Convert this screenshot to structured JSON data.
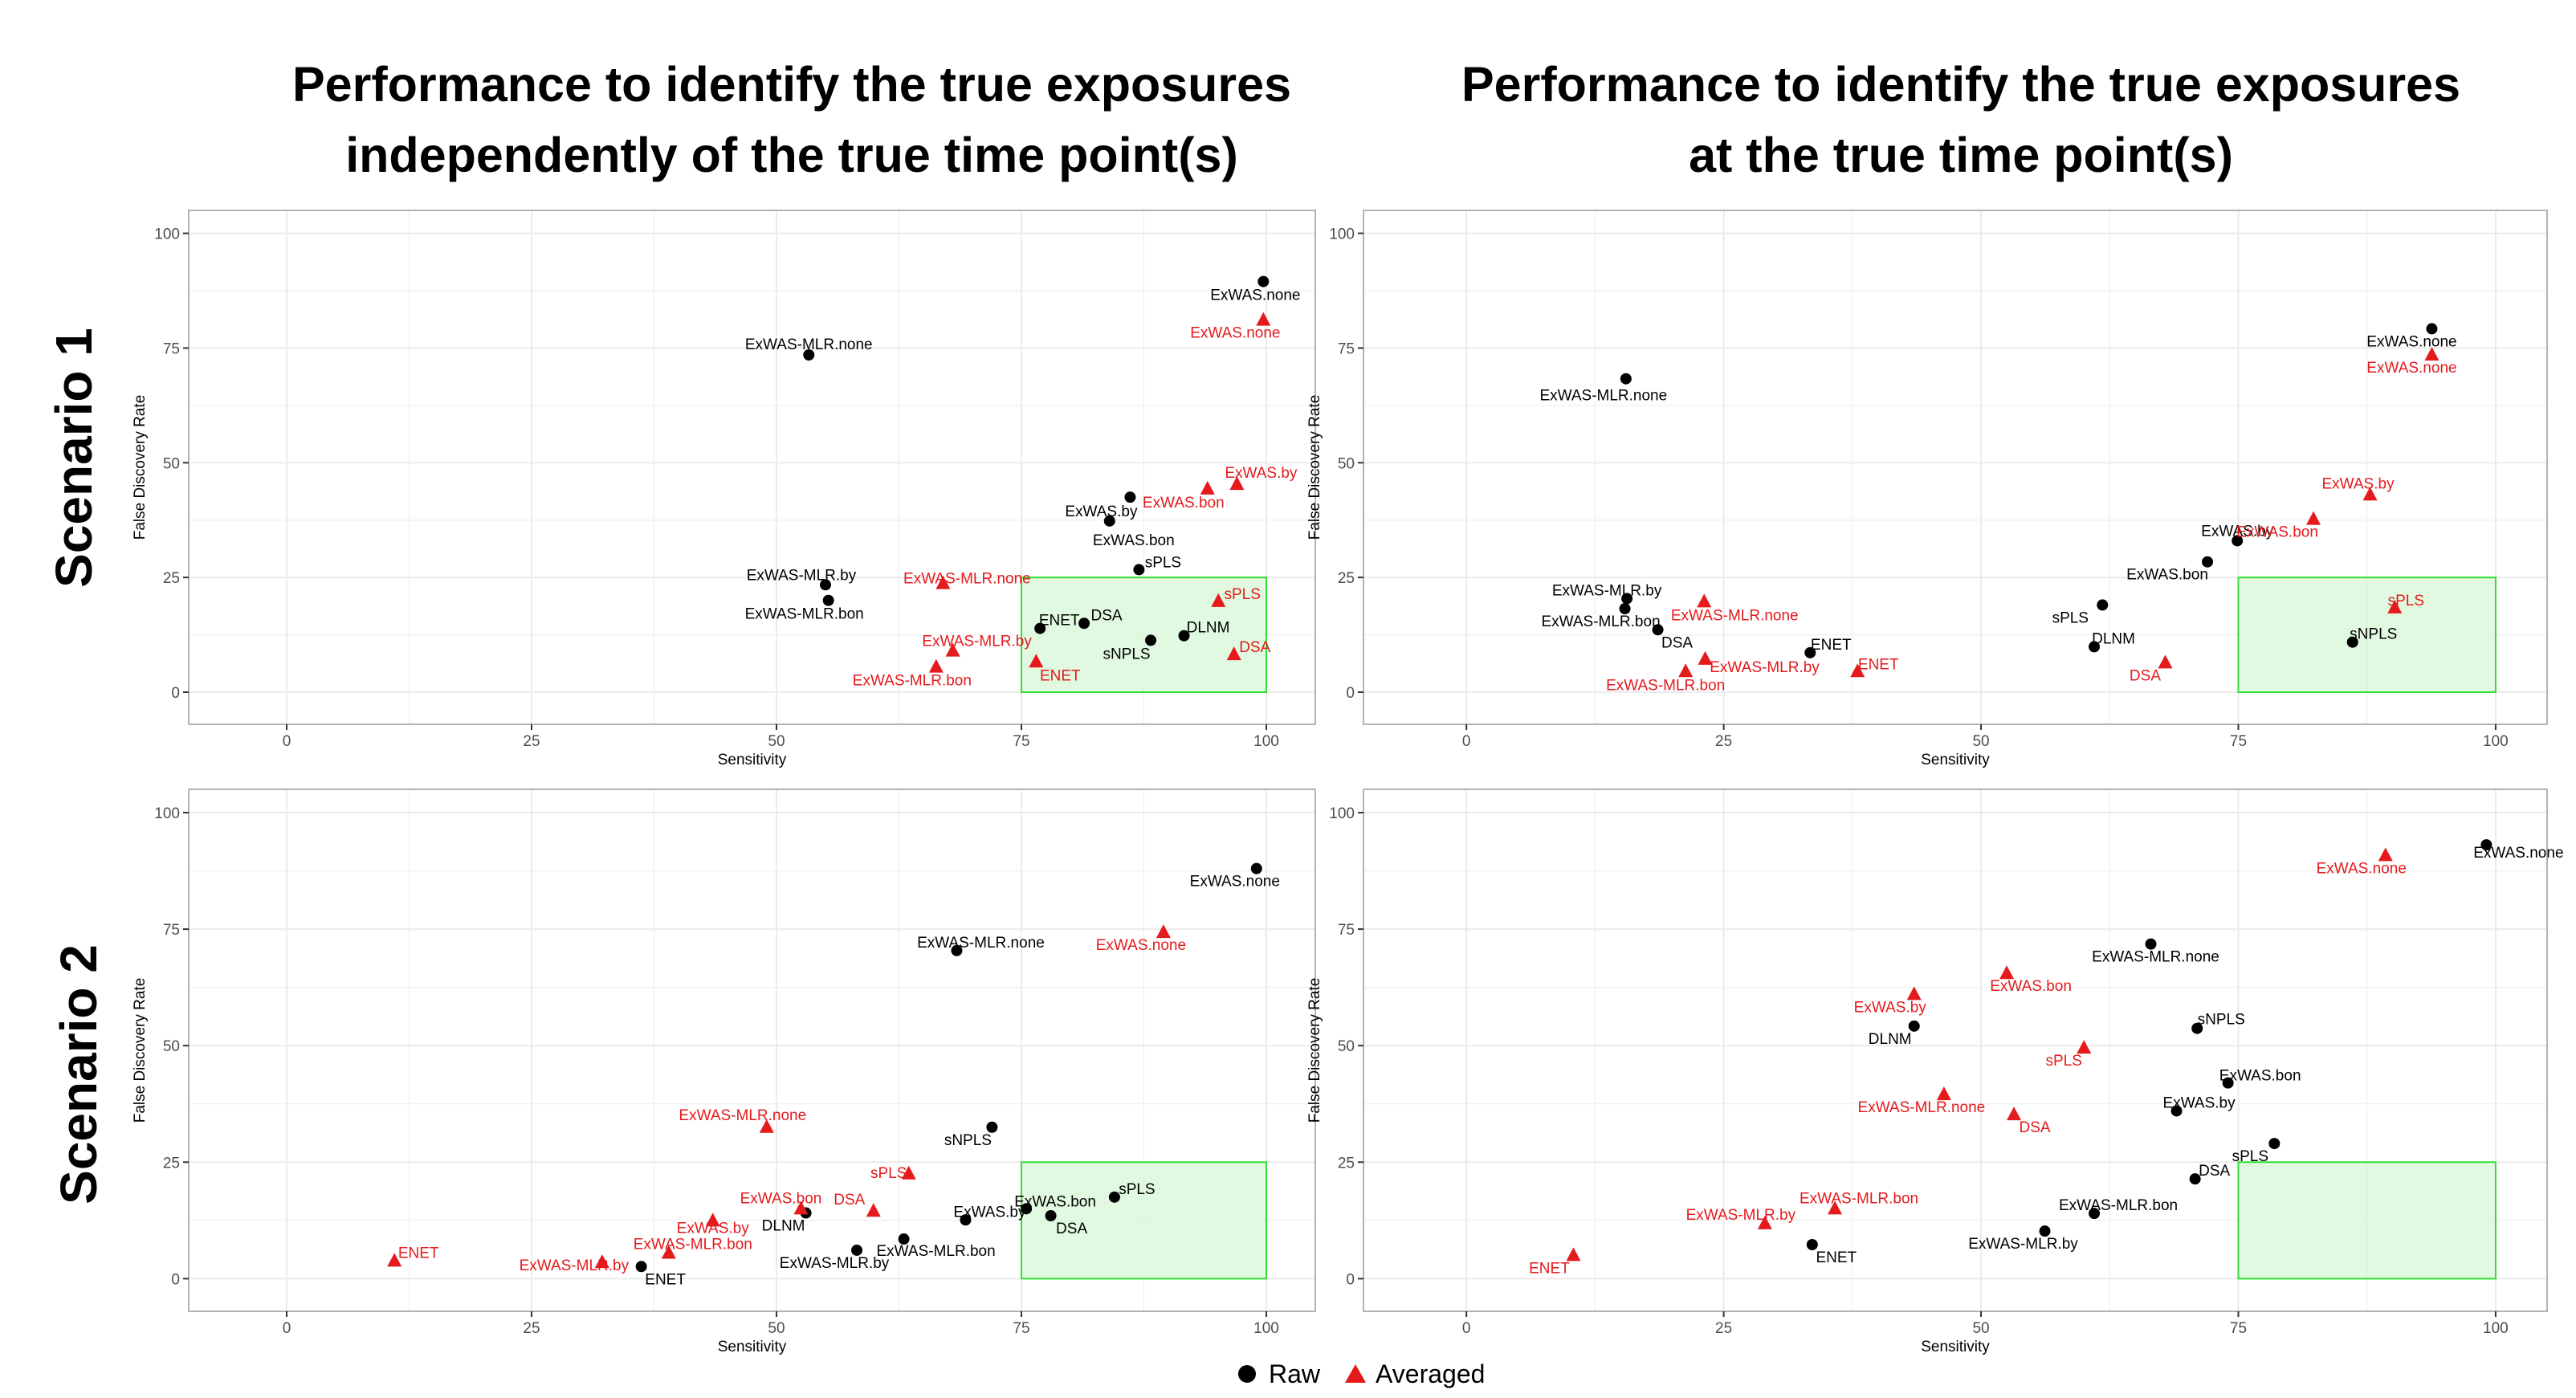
{
  "figure": {
    "column_titles": [
      [
        "Performance to identify the true exposures",
        "independently of the true time point(s)"
      ],
      [
        "Performance to identify the true exposures",
        "at the true time point(s)"
      ]
    ],
    "row_titles": [
      "Scenario 1",
      "Scenario 2"
    ],
    "legend": {
      "raw": "Raw",
      "averaged": "Averaged"
    },
    "colors": {
      "raw": "#000000",
      "averaged": "#e41a1c",
      "target_fill": "#ccf5cc",
      "target_stroke": "#33dd33",
      "panel_border": "#b3b3b3",
      "grid": "#ebebeb"
    }
  },
  "chart_data": [
    {
      "type": "scatter",
      "title": "Scenario 1 — independently of the true time point(s)",
      "xlabel": "Sensitivity",
      "ylabel": "False Discovery Rate",
      "xlim": [
        -10,
        105
      ],
      "ylim": [
        -7,
        105
      ],
      "xticks": [
        0,
        25,
        50,
        75,
        100
      ],
      "yticks": [
        0,
        25,
        50,
        75,
        100
      ],
      "target_region": {
        "x": [
          75,
          100
        ],
        "y": [
          0,
          25
        ]
      },
      "series": [
        {
          "name": "Raw",
          "points": [
            {
              "label": "ExWAS.none",
              "x": 99.7,
              "y": 89.5
            },
            {
              "label": "ExWAS-MLR.none",
              "x": 53.3,
              "y": 73.5
            },
            {
              "label": "ExWAS.by",
              "x": 86.1,
              "y": 42.5
            },
            {
              "label": "ExWAS.bon",
              "x": 84.0,
              "y": 37.3
            },
            {
              "label": "sPLS",
              "x": 87.0,
              "y": 26.7
            },
            {
              "label": "ExWAS-MLR.by",
              "x": 55.0,
              "y": 23.4
            },
            {
              "label": "ExWAS-MLR.bon",
              "x": 55.3,
              "y": 20.0
            },
            {
              "label": "ENET",
              "x": 76.9,
              "y": 13.9
            },
            {
              "label": "DSA",
              "x": 81.4,
              "y": 15.0
            },
            {
              "label": "DLNM",
              "x": 91.6,
              "y": 12.3
            },
            {
              "label": "sNPLS",
              "x": 88.2,
              "y": 11.3
            }
          ]
        },
        {
          "name": "Averaged",
          "points": [
            {
              "label": "ExWAS.none",
              "x": 99.7,
              "y": 81.1
            },
            {
              "label": "ExWAS.by",
              "x": 97.0,
              "y": 45.3
            },
            {
              "label": "ExWAS.bon",
              "x": 94.0,
              "y": 44.3
            },
            {
              "label": "ExWAS-MLR.none",
              "x": 67.0,
              "y": 23.7
            },
            {
              "label": "sPLS",
              "x": 95.1,
              "y": 19.8
            },
            {
              "label": "ExWAS-MLR.by",
              "x": 68.0,
              "y": 9.0
            },
            {
              "label": "ExWAS-MLR.bon",
              "x": 66.3,
              "y": 5.5
            },
            {
              "label": "ENET",
              "x": 76.5,
              "y": 6.6
            },
            {
              "label": "DSA",
              "x": 96.7,
              "y": 8.2
            }
          ]
        }
      ]
    },
    {
      "type": "scatter",
      "title": "Scenario 1 — at the true time point(s)",
      "xlabel": "Sensitivity",
      "ylabel": "False Discovery Rate",
      "xlim": [
        -10,
        105
      ],
      "ylim": [
        -7,
        105
      ],
      "xticks": [
        0,
        25,
        50,
        75,
        100
      ],
      "yticks": [
        0,
        25,
        50,
        75,
        100
      ],
      "target_region": {
        "x": [
          75,
          100
        ],
        "y": [
          0,
          25
        ]
      },
      "series": [
        {
          "name": "Raw",
          "points": [
            {
              "label": "ExWAS.none",
              "x": 93.8,
              "y": 79.2
            },
            {
              "label": "ExWAS-MLR.none",
              "x": 15.5,
              "y": 68.3
            },
            {
              "label": "ExWAS.by",
              "x": 74.9,
              "y": 33.0
            },
            {
              "label": "ExWAS.bon",
              "x": 72.0,
              "y": 28.4
            },
            {
              "label": "ExWAS-MLR.by",
              "x": 15.6,
              "y": 20.4
            },
            {
              "label": "ExWAS-MLR.bon",
              "x": 15.4,
              "y": 18.2
            },
            {
              "label": "DSA",
              "x": 18.6,
              "y": 13.6
            },
            {
              "label": "ENET",
              "x": 33.4,
              "y": 8.6
            },
            {
              "label": "sPLS",
              "x": 61.8,
              "y": 19.0
            },
            {
              "label": "DLNM",
              "x": 61.0,
              "y": 9.9
            },
            {
              "label": "sNPLS",
              "x": 86.1,
              "y": 10.9
            }
          ]
        },
        {
          "name": "Averaged",
          "points": [
            {
              "label": "ExWAS.none",
              "x": 93.8,
              "y": 73.5
            },
            {
              "label": "ExWAS.by",
              "x": 87.8,
              "y": 43.0
            },
            {
              "label": "ExWAS.bon",
              "x": 82.3,
              "y": 37.7
            },
            {
              "label": "sPLS",
              "x": 90.2,
              "y": 18.4
            },
            {
              "label": "ExWAS-MLR.none",
              "x": 23.1,
              "y": 19.7
            },
            {
              "label": "ExWAS-MLR.by",
              "x": 23.2,
              "y": 7.2
            },
            {
              "label": "ExWAS-MLR.bon",
              "x": 21.3,
              "y": 4.5
            },
            {
              "label": "ENET",
              "x": 38.0,
              "y": 4.5
            },
            {
              "label": "DSA",
              "x": 67.9,
              "y": 6.4
            }
          ]
        }
      ]
    },
    {
      "type": "scatter",
      "title": "Scenario 2 — independently of the true time point(s)",
      "xlabel": "Sensitivity",
      "ylabel": "False Discovery Rate",
      "xlim": [
        -10,
        105
      ],
      "ylim": [
        -7,
        105
      ],
      "xticks": [
        0,
        25,
        50,
        75,
        100
      ],
      "yticks": [
        0,
        25,
        50,
        75,
        100
      ],
      "target_region": {
        "x": [
          75,
          100
        ],
        "y": [
          0,
          25
        ]
      },
      "series": [
        {
          "name": "Raw",
          "points": [
            {
              "label": "ExWAS.none",
              "x": 99.0,
              "y": 88.0
            },
            {
              "label": "ExWAS-MLR.none",
              "x": 68.4,
              "y": 70.4
            },
            {
              "label": "sNPLS",
              "x": 72.0,
              "y": 32.5
            },
            {
              "label": "DLNM",
              "x": 53.0,
              "y": 14.1
            },
            {
              "label": "ExWAS-MLR.bon",
              "x": 63.0,
              "y": 8.5
            },
            {
              "label": "ExWAS-MLR.by",
              "x": 58.2,
              "y": 6.1
            },
            {
              "label": "ExWAS.by",
              "x": 69.3,
              "y": 12.6
            },
            {
              "label": "ExWAS.bon",
              "x": 75.5,
              "y": 15.0
            },
            {
              "label": "DSA",
              "x": 78.0,
              "y": 13.5
            },
            {
              "label": "sPLS",
              "x": 84.5,
              "y": 17.5
            },
            {
              "label": "ENET",
              "x": 36.2,
              "y": 2.6
            }
          ]
        },
        {
          "name": "Averaged",
          "points": [
            {
              "label": "ExWAS.none",
              "x": 89.5,
              "y": 74.3
            },
            {
              "label": "ExWAS-MLR.none",
              "x": 49.0,
              "y": 32.5
            },
            {
              "label": "ExWAS.bon",
              "x": 52.5,
              "y": 15.0
            },
            {
              "label": "DSA",
              "x": 59.9,
              "y": 14.5
            },
            {
              "label": "sPLS",
              "x": 63.5,
              "y": 22.5
            },
            {
              "label": "ExWAS.by",
              "x": 43.5,
              "y": 12.4
            },
            {
              "label": "ExWAS-MLR.bon",
              "x": 39.0,
              "y": 5.5
            },
            {
              "label": "ExWAS-MLR.by",
              "x": 32.2,
              "y": 3.5
            },
            {
              "label": "ENET",
              "x": 11.0,
              "y": 3.8
            }
          ]
        }
      ]
    },
    {
      "type": "scatter",
      "title": "Scenario 2 — at the true time point(s)",
      "xlabel": "Sensitivity",
      "ylabel": "False Discovery Rate",
      "xlim": [
        -10,
        105
      ],
      "ylim": [
        -7,
        105
      ],
      "xticks": [
        0,
        25,
        50,
        75,
        100
      ],
      "yticks": [
        0,
        25,
        50,
        75,
        100
      ],
      "target_region": {
        "x": [
          75,
          100
        ],
        "y": [
          0,
          25
        ]
      },
      "series": [
        {
          "name": "Raw",
          "points": [
            {
              "label": "ExWAS.none",
              "x": 99.1,
              "y": 93.1
            },
            {
              "label": "ExWAS-MLR.none",
              "x": 66.5,
              "y": 71.8
            },
            {
              "label": "sNPLS",
              "x": 71.0,
              "y": 53.7
            },
            {
              "label": "DLNM",
              "x": 43.5,
              "y": 54.2
            },
            {
              "label": "ExWAS.bon",
              "x": 74.0,
              "y": 42.0
            },
            {
              "label": "ExWAS.by",
              "x": 69.0,
              "y": 36.0
            },
            {
              "label": "sPLS",
              "x": 78.5,
              "y": 29.0
            },
            {
              "label": "DSA",
              "x": 70.8,
              "y": 21.4
            },
            {
              "label": "ExWAS-MLR.bon",
              "x": 61.0,
              "y": 14.0
            },
            {
              "label": "ExWAS-MLR.by",
              "x": 56.2,
              "y": 10.2
            },
            {
              "label": "ENET",
              "x": 33.6,
              "y": 7.3
            }
          ]
        },
        {
          "name": "Averaged",
          "points": [
            {
              "label": "ExWAS.none",
              "x": 89.3,
              "y": 90.8
            },
            {
              "label": "ExWAS.bon",
              "x": 52.5,
              "y": 65.5
            },
            {
              "label": "ExWAS.by",
              "x": 43.5,
              "y": 61.0
            },
            {
              "label": "sPLS",
              "x": 60.0,
              "y": 49.5
            },
            {
              "label": "ExWAS-MLR.none",
              "x": 46.4,
              "y": 39.5
            },
            {
              "label": "DSA",
              "x": 53.2,
              "y": 35.2
            },
            {
              "label": "ExWAS-MLR.bon",
              "x": 35.8,
              "y": 15.0
            },
            {
              "label": "ExWAS-MLR.by",
              "x": 29.0,
              "y": 11.8
            },
            {
              "label": "ENET",
              "x": 10.4,
              "y": 5.0
            }
          ]
        }
      ]
    }
  ]
}
